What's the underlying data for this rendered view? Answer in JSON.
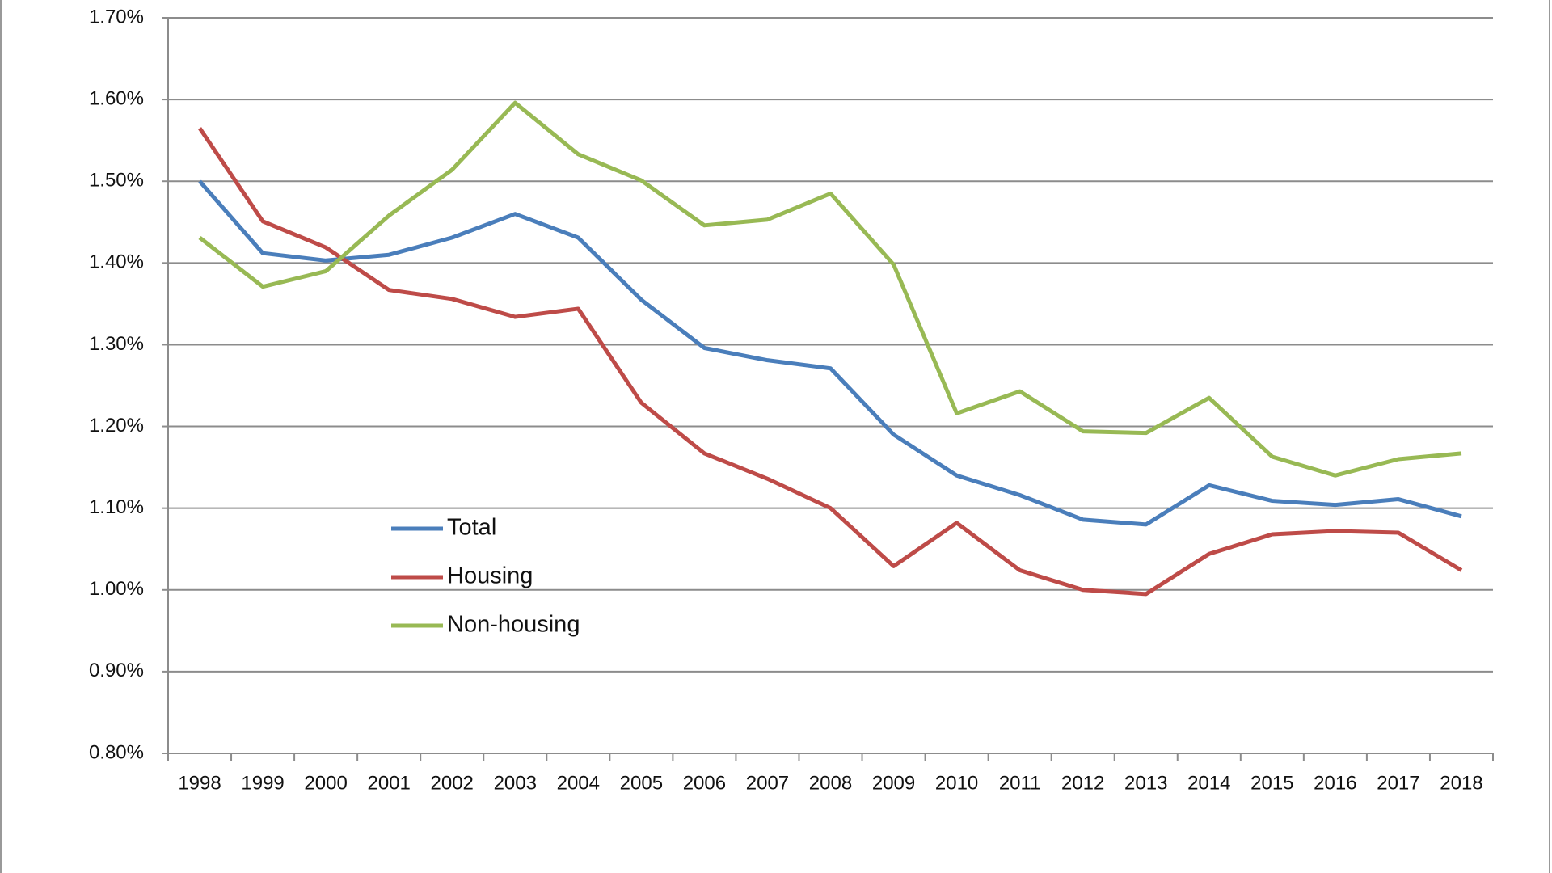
{
  "chart_data": {
    "type": "line",
    "categories": [
      "1998",
      "1999",
      "2000",
      "2001",
      "2002",
      "2003",
      "2004",
      "2005",
      "2006",
      "2007",
      "2008",
      "2009",
      "2010",
      "2011",
      "2012",
      "2013",
      "2014",
      "2015",
      "2016",
      "2017",
      "2018"
    ],
    "series": [
      {
        "name": "Total",
        "color": "#4a7ebb",
        "values": [
          1.5,
          1.412,
          1.403,
          1.41,
          1.431,
          1.46,
          1.431,
          1.355,
          1.296,
          1.281,
          1.271,
          1.19,
          1.14,
          1.116,
          1.086,
          1.08,
          1.128,
          1.109,
          1.104,
          1.111,
          1.09
        ]
      },
      {
        "name": "Housing",
        "color": "#be4b48",
        "values": [
          1.565,
          1.451,
          1.419,
          1.367,
          1.356,
          1.334,
          1.344,
          1.229,
          1.167,
          1.136,
          1.1,
          1.029,
          1.082,
          1.024,
          1.0,
          0.995,
          1.044,
          1.068,
          1.072,
          1.07,
          1.024
        ]
      },
      {
        "name": "Non-housing",
        "color": "#98b954",
        "values": [
          1.431,
          1.371,
          1.39,
          1.458,
          1.514,
          1.596,
          1.533,
          1.501,
          1.446,
          1.453,
          1.485,
          1.398,
          1.216,
          1.243,
          1.194,
          1.192,
          1.235,
          1.163,
          1.14,
          1.16,
          1.167
        ]
      }
    ],
    "ylim": [
      0.8,
      1.7
    ],
    "yticks": [
      {
        "value": 0.8,
        "label": "0.80%"
      },
      {
        "value": 0.9,
        "label": "0.90%"
      },
      {
        "value": 1.0,
        "label": "1.00%"
      },
      {
        "value": 1.1,
        "label": "1.10%"
      },
      {
        "value": 1.2,
        "label": "1.20%"
      },
      {
        "value": 1.3,
        "label": "1.30%"
      },
      {
        "value": 1.4,
        "label": "1.40%"
      },
      {
        "value": 1.5,
        "label": "1.50%"
      },
      {
        "value": 1.6,
        "label": "1.60%"
      },
      {
        "value": 1.7,
        "label": "1.70%"
      }
    ],
    "grid": true
  }
}
